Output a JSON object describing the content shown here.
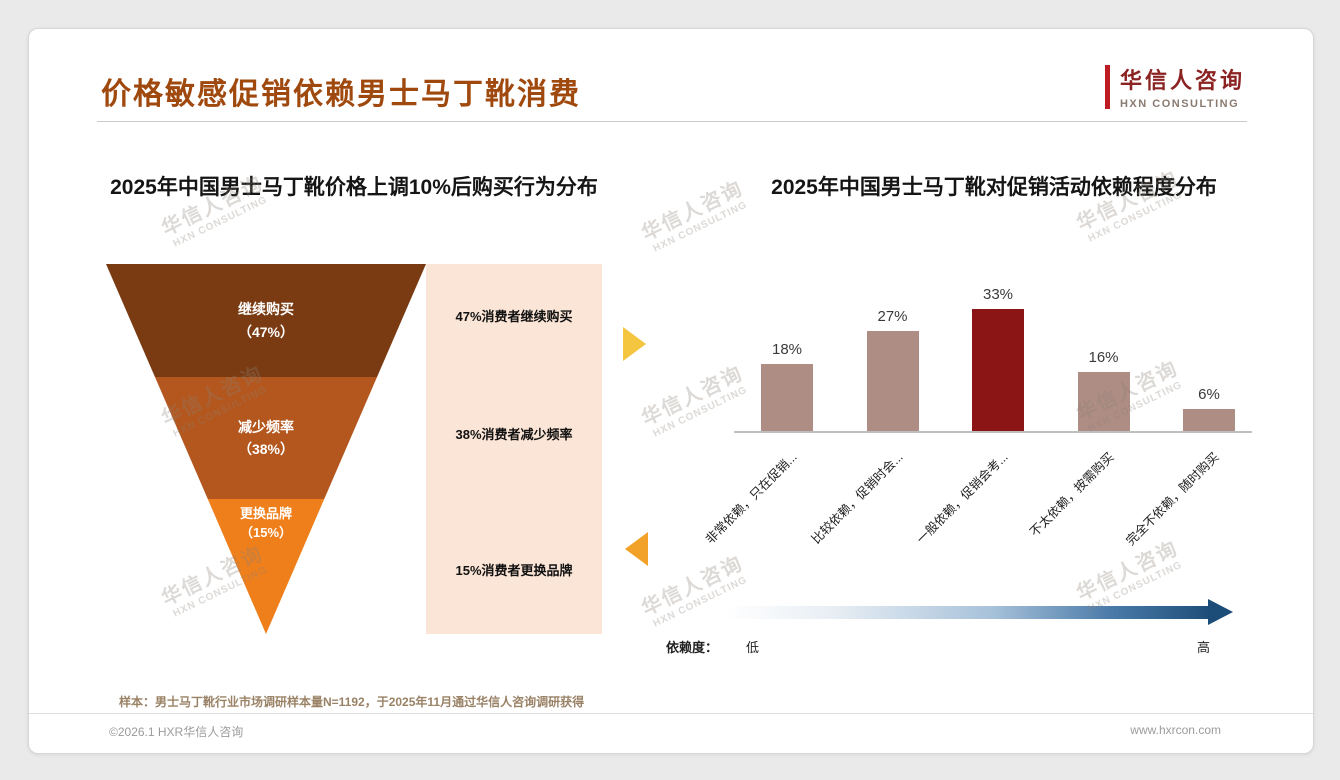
{
  "page": {
    "title": "价格敏感促销依赖男士马丁靴消费",
    "logo": {
      "cn": "华信人咨询",
      "en": "HXN CONSULTING"
    },
    "sample_note": "样本：男士马丁靴行业市场调研样本量N=1192，于2025年11月通过华信人咨询调研获得",
    "footer": {
      "copyright": "©2026.1 HXR华信人咨询",
      "website": "www.hxrcon.com"
    }
  },
  "watermark": {
    "line1": "华信人咨询",
    "line2": "HXN CONSULTING"
  },
  "colors": {
    "title": "#A0490F",
    "annotation_panel": "#FBE5D6",
    "bar_default": "#AE8D85",
    "bar_highlight": "#8B1414",
    "gradient_end": "#1F4E79",
    "arrow_right": "#F4C53F",
    "arrow_left": "#F2A229"
  },
  "chart_data": [
    {
      "type": "funnel",
      "title": "2025年中国男士马丁靴价格上调10%后购买行为分布",
      "segments": [
        {
          "label": "继续购买",
          "value_label": "（47%）",
          "value_pct": 47,
          "annotation": "47%消费者继续购买",
          "color": "#7A3B12"
        },
        {
          "label": "减少频率",
          "value_label": "（38%）",
          "value_pct": 38,
          "annotation": "38%消费者减少频率",
          "color": "#B4571E"
        },
        {
          "label": "更换品牌",
          "value_label": "（15%）",
          "value_pct": 15,
          "annotation": "15%消费者更换品牌",
          "color": "#EF7F1B"
        }
      ]
    },
    {
      "type": "bar",
      "title": "2025年中国男士马丁靴对促销活动依赖程度分布",
      "categories": [
        "非常依赖，只在促销...",
        "比较依赖，促销时会...",
        "一般依赖，促销会考...",
        "不太依赖，按需购买",
        "完全不依赖，随时购买"
      ],
      "values": [
        18,
        27,
        33,
        16,
        6
      ],
      "value_labels": [
        "18%",
        "27%",
        "33%",
        "16%",
        "6%"
      ],
      "bar_color": "#AE8D85",
      "highlight_index": 2,
      "highlight_color": "#8B1414",
      "ylim": [
        0,
        35
      ],
      "grid": false,
      "legend": "none",
      "dependency_axis": {
        "label": "依赖度：",
        "low": "低",
        "high": "高"
      }
    }
  ]
}
